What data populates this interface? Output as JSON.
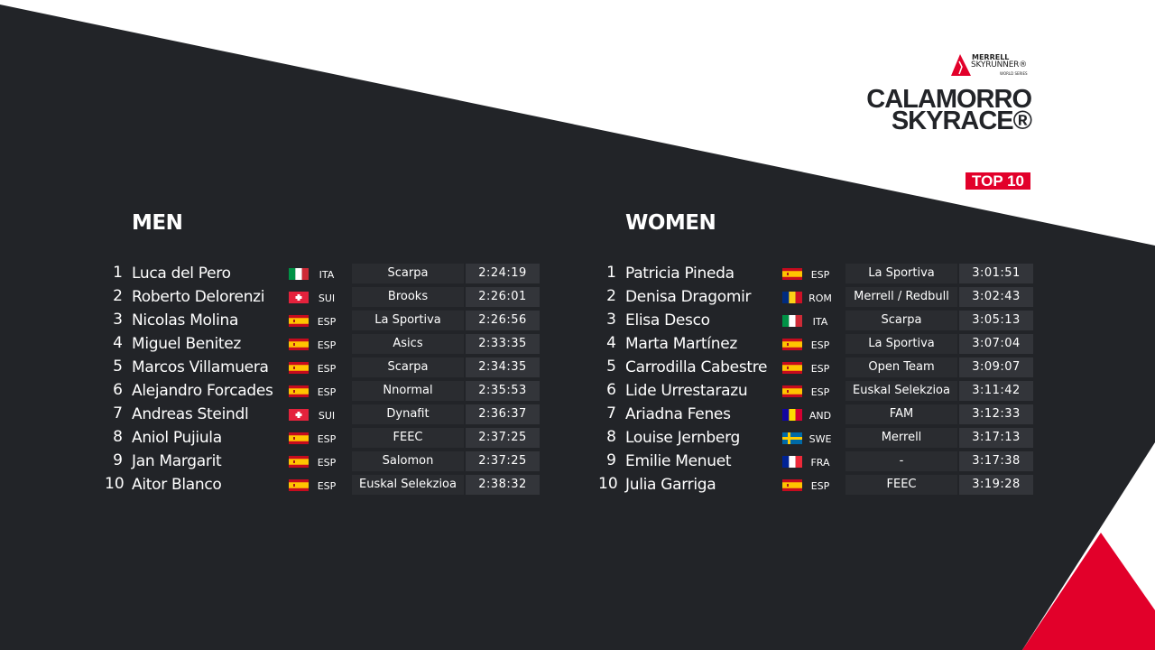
{
  "brand": {
    "line1": "MERRELL",
    "line2": "SKYRUNNER®",
    "line3": "WORLD SERIES"
  },
  "event": {
    "title_line1": "CALAMORRO",
    "title_line2": "SKYRACE®"
  },
  "badge": "TOP 10",
  "colors": {
    "background": "#222428",
    "accent": "#e2002a",
    "white": "#ffffff"
  },
  "men": {
    "heading": "MEN",
    "rows": [
      {
        "rank": "1",
        "name": "Luca del Pero",
        "flag": "ITA",
        "code": "ITA",
        "team": "Scarpa",
        "time": "2:24:19"
      },
      {
        "rank": "2",
        "name": "Roberto Delorenzi",
        "flag": "SUI",
        "code": "SUI",
        "team": "Brooks",
        "time": "2:26:01"
      },
      {
        "rank": "3",
        "name": "Nicolas Molina",
        "flag": "ESP",
        "code": "ESP",
        "team": "La Sportiva",
        "time": "2:26:56"
      },
      {
        "rank": "4",
        "name": "Miguel Benitez",
        "flag": "ESP",
        "code": "ESP",
        "team": "Asics",
        "time": "2:33:35"
      },
      {
        "rank": "5",
        "name": "Marcos Villamuera",
        "flag": "ESP",
        "code": "ESP",
        "team": "Scarpa",
        "time": "2:34:35"
      },
      {
        "rank": "6",
        "name": "Alejandro Forcades",
        "flag": "ESP",
        "code": "ESP",
        "team": "Nnormal",
        "time": "2:35:53"
      },
      {
        "rank": "7",
        "name": "Andreas Steindl",
        "flag": "SUI",
        "code": "SUI",
        "team": "Dynafit",
        "time": "2:36:37"
      },
      {
        "rank": "8",
        "name": "Aniol Pujiula",
        "flag": "ESP",
        "code": "ESP",
        "team": "FEEC",
        "time": "2:37:25"
      },
      {
        "rank": "9",
        "name": "Jan Margarit",
        "flag": "ESP",
        "code": "ESP",
        "team": "Salomon",
        "time": "2:37:25"
      },
      {
        "rank": "10",
        "name": "Aitor Blanco",
        "flag": "ESP",
        "code": "ESP",
        "team": "Euskal Selekzioa",
        "time": "2:38:32"
      }
    ]
  },
  "women": {
    "heading": "WOMEN",
    "rows": [
      {
        "rank": "1",
        "name": "Patricia Pineda",
        "flag": "ESP",
        "code": "ESP",
        "team": "La Sportiva",
        "time": "3:01:51"
      },
      {
        "rank": "2",
        "name": "Denisa Dragomir",
        "flag": "ROM",
        "code": "ROM",
        "team": "Merrell / Redbull",
        "time": "3:02:43"
      },
      {
        "rank": "3",
        "name": "Elisa Desco",
        "flag": "ITA",
        "code": "ITA",
        "team": "Scarpa",
        "time": "3:05:13"
      },
      {
        "rank": "4",
        "name": "Marta Martínez",
        "flag": "ESP",
        "code": "ESP",
        "team": "La Sportiva",
        "time": "3:07:04"
      },
      {
        "rank": "5",
        "name": "Carrodilla Cabestre",
        "flag": "ESP",
        "code": "ESP",
        "team": "Open Team",
        "time": "3:09:07"
      },
      {
        "rank": "6",
        "name": "Lide Urrestarazu",
        "flag": "ESP",
        "code": "ESP",
        "team": "Euskal Selekzioa",
        "time": "3:11:42"
      },
      {
        "rank": "7",
        "name": "Ariadna Fenes",
        "flag": "AND",
        "code": "AND",
        "team": "FAM",
        "time": "3:12:33"
      },
      {
        "rank": "8",
        "name": "Louise Jernberg",
        "flag": "SWE",
        "code": "SWE",
        "team": "Merrell",
        "time": "3:17:13"
      },
      {
        "rank": "9",
        "name": "Emilie Menuet",
        "flag": "FRA",
        "code": "FRA",
        "team": "-",
        "time": "3:17:38"
      },
      {
        "rank": "10",
        "name": "Julia Garriga",
        "flag": "ESP",
        "code": "ESP",
        "team": "FEEC",
        "time": "3:19:28"
      }
    ]
  }
}
